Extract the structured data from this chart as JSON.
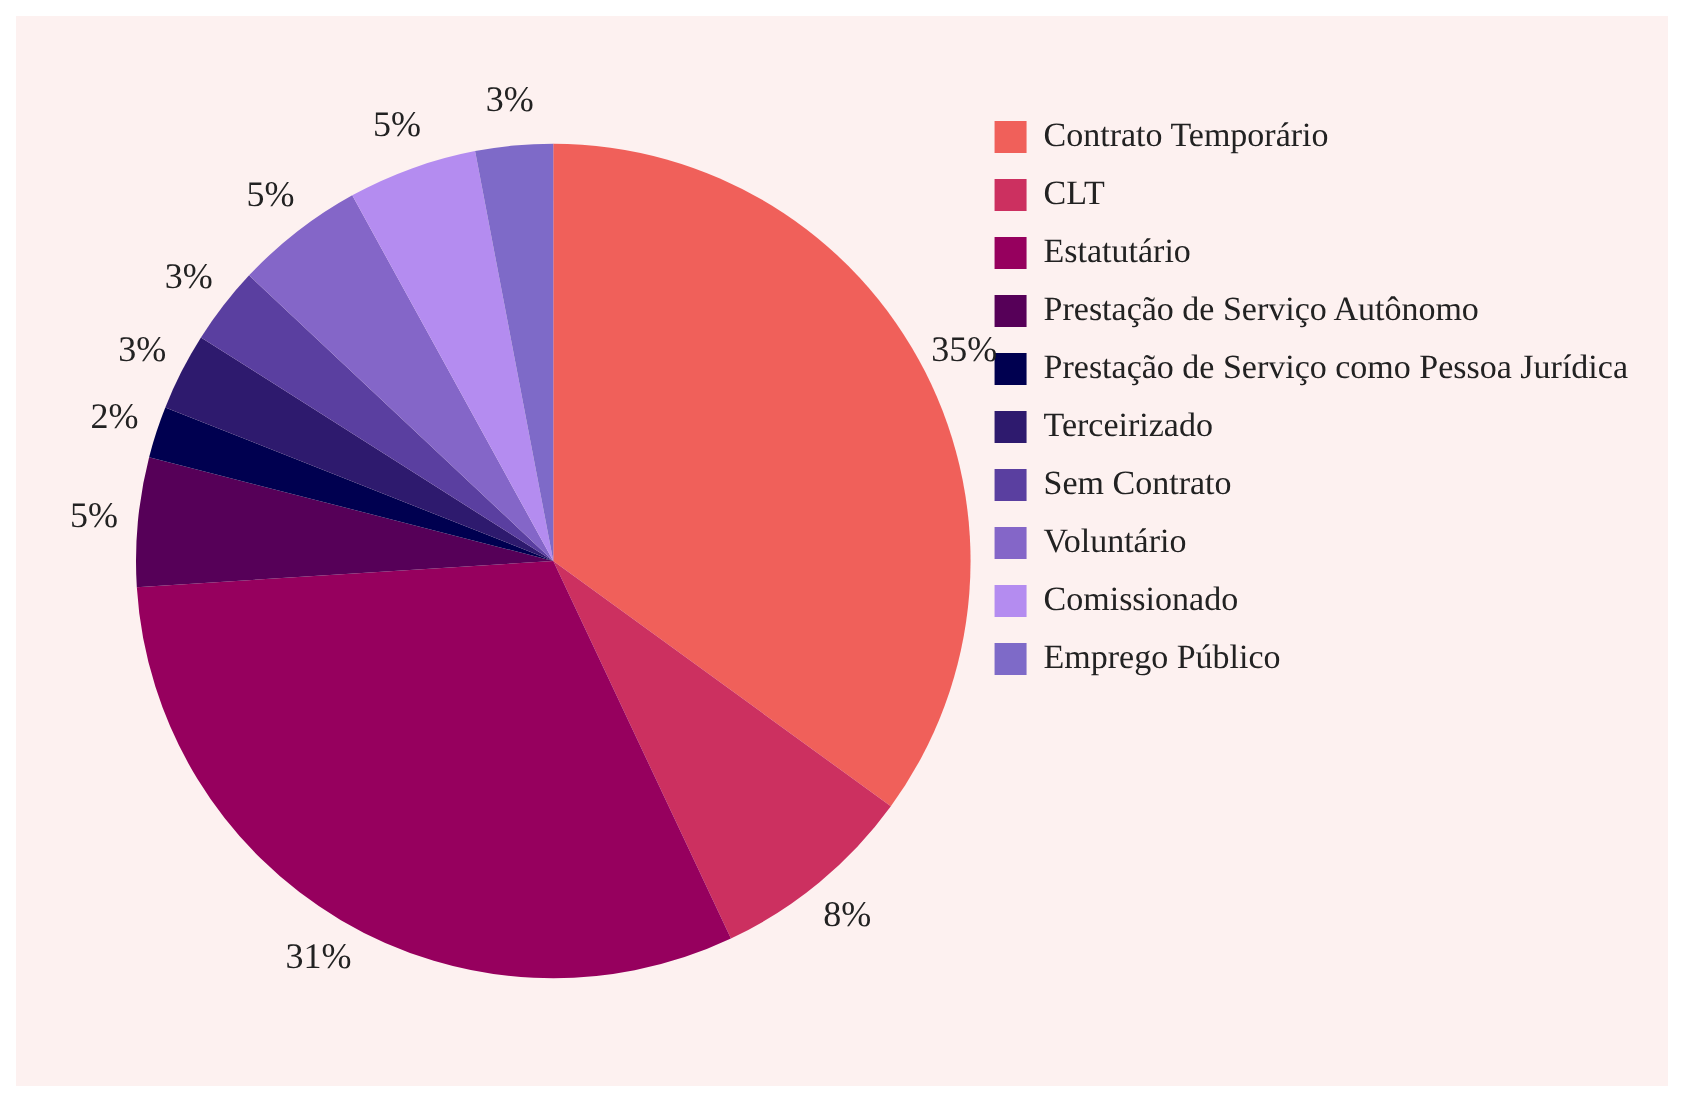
{
  "chart_data": {
    "type": "pie",
    "categories": [
      "Contrato Temporário",
      "CLT",
      "Estatutário",
      "Prestação de Serviço Autônomo",
      "Prestação de Serviço como Pessoa Jurídica",
      "Terceirizado",
      "Sem Contrato",
      "Voluntário",
      "Comissionado",
      "Emprego Público"
    ],
    "values": [
      35,
      8,
      31,
      5,
      2,
      3,
      3,
      5,
      5,
      3
    ],
    "colors": [
      "#f0605a",
      "#cc3060",
      "#96005e",
      "#560058",
      "#000050",
      "#2e1a6e",
      "#5a3fa0",
      "#8466c8",
      "#b48cf0",
      "#7e6ac8"
    ],
    "value_labels": [
      "35%",
      "8%",
      "31%",
      "5%",
      "2%",
      "3%",
      "3%",
      "5%",
      "5%",
      "3%"
    ],
    "legend": "right"
  }
}
